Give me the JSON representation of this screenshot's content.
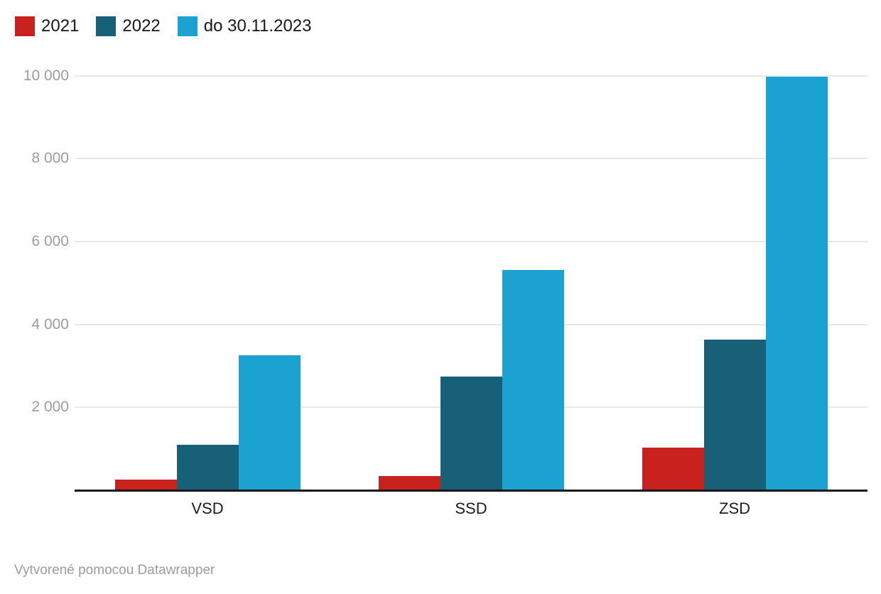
{
  "footer": {
    "text": "Vytvorené pomocou Datawrapper"
  },
  "chart_data": {
    "type": "bar",
    "title": "",
    "xlabel": "",
    "ylabel": "",
    "categories": [
      "VSD",
      "SSD",
      "ZSD"
    ],
    "series": [
      {
        "name": "2021",
        "color": "#c9211e",
        "values": [
          250,
          350,
          1020
        ]
      },
      {
        "name": "2022",
        "color": "#185f78",
        "values": [
          1090,
          2750,
          3640
        ]
      },
      {
        "name": "do 30.11.2023",
        "color": "#1ca2d0",
        "values": [
          3260,
          5320,
          9970
        ]
      }
    ],
    "ylim": [
      0,
      10000
    ],
    "yticks": [
      {
        "value": 2000,
        "label": "2 000"
      },
      {
        "value": 4000,
        "label": "4 000"
      },
      {
        "value": 6000,
        "label": "6 000"
      },
      {
        "value": 8000,
        "label": "8 000"
      },
      {
        "value": 10000,
        "label": "10 000"
      }
    ],
    "grid": true,
    "legend_position": "top-left",
    "colors": {
      "gridline": "#e8e8e8",
      "baseline": "#18181b",
      "tick_text": "#9c9c9c",
      "axis_text": "#1d1d1f"
    }
  }
}
